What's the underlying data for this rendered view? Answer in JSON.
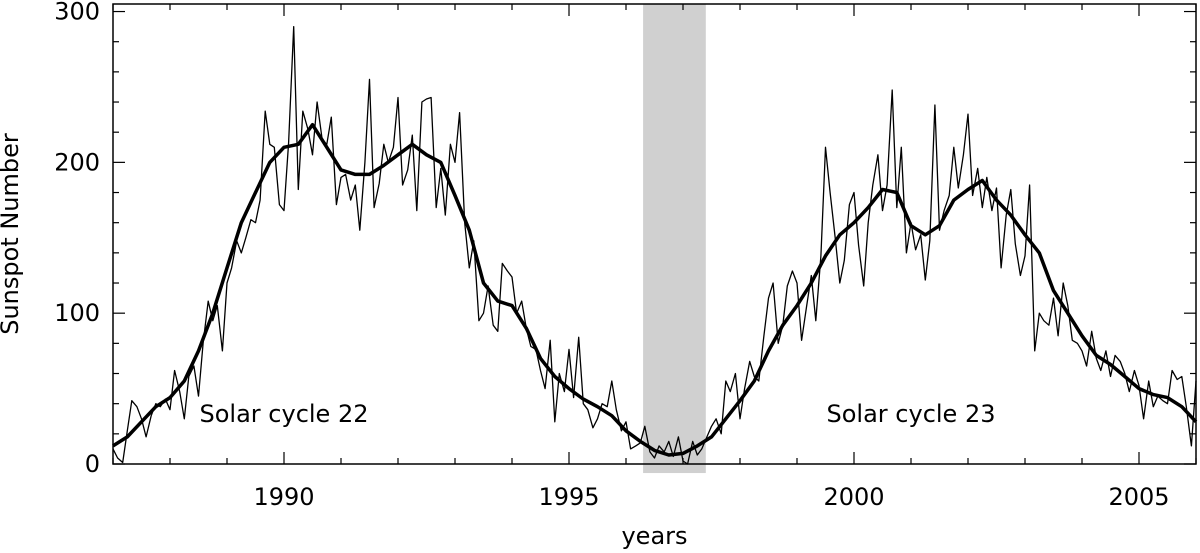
{
  "chart_data": {
    "type": "line",
    "xlabel": "years",
    "ylabel": "Sunspot Number",
    "xlim": [
      1987.0,
      2006.0
    ],
    "ylim": [
      0,
      305
    ],
    "x_ticks": [
      1990,
      1995,
      2000,
      2005
    ],
    "y_ticks": [
      0,
      100,
      200,
      300
    ],
    "grid": false,
    "shaded_region": {
      "x_start": 1996.3,
      "x_end": 1997.4,
      "color": "#d0d0d0"
    },
    "annotations": [
      {
        "text": "Solar cycle 22",
        "x": 1990.0,
        "y": 28
      },
      {
        "text": "Solar cycle 23",
        "x": 2001.0,
        "y": 28
      }
    ],
    "series": [
      {
        "style": "thin",
        "color": "#000000",
        "points": [
          [
            1987.0,
            10
          ],
          [
            1987.08,
            4
          ],
          [
            1987.17,
            1
          ],
          [
            1987.25,
            22
          ],
          [
            1987.33,
            42
          ],
          [
            1987.42,
            38
          ],
          [
            1987.5,
            30
          ],
          [
            1987.58,
            18
          ],
          [
            1987.67,
            32
          ],
          [
            1987.75,
            40
          ],
          [
            1987.83,
            38
          ],
          [
            1987.92,
            43
          ],
          [
            1988.0,
            36
          ],
          [
            1988.08,
            62
          ],
          [
            1988.17,
            48
          ],
          [
            1988.25,
            30
          ],
          [
            1988.33,
            58
          ],
          [
            1988.42,
            65
          ],
          [
            1988.5,
            45
          ],
          [
            1988.58,
            80
          ],
          [
            1988.67,
            108
          ],
          [
            1988.75,
            95
          ],
          [
            1988.83,
            105
          ],
          [
            1988.92,
            75
          ],
          [
            1989.0,
            120
          ],
          [
            1989.08,
            130
          ],
          [
            1989.17,
            148
          ],
          [
            1989.25,
            140
          ],
          [
            1989.33,
            150
          ],
          [
            1989.42,
            162
          ],
          [
            1989.5,
            160
          ],
          [
            1989.58,
            175
          ],
          [
            1989.67,
            234
          ],
          [
            1989.75,
            212
          ],
          [
            1989.83,
            210
          ],
          [
            1989.92,
            172
          ],
          [
            1990.0,
            168
          ],
          [
            1990.08,
            213
          ],
          [
            1990.17,
            290
          ],
          [
            1990.25,
            182
          ],
          [
            1990.33,
            234
          ],
          [
            1990.42,
            222
          ],
          [
            1990.5,
            205
          ],
          [
            1990.58,
            240
          ],
          [
            1990.67,
            215
          ],
          [
            1990.75,
            212
          ],
          [
            1990.83,
            230
          ],
          [
            1990.92,
            172
          ],
          [
            1991.0,
            190
          ],
          [
            1991.08,
            192
          ],
          [
            1991.17,
            175
          ],
          [
            1991.25,
            185
          ],
          [
            1991.33,
            155
          ],
          [
            1991.42,
            200
          ],
          [
            1991.5,
            255
          ],
          [
            1991.58,
            170
          ],
          [
            1991.67,
            186
          ],
          [
            1991.75,
            212
          ],
          [
            1991.83,
            200
          ],
          [
            1991.92,
            210
          ],
          [
            1992.0,
            243
          ],
          [
            1992.08,
            185
          ],
          [
            1992.17,
            195
          ],
          [
            1992.25,
            218
          ],
          [
            1992.33,
            168
          ],
          [
            1992.42,
            240
          ],
          [
            1992.5,
            242
          ],
          [
            1992.58,
            243
          ],
          [
            1992.67,
            170
          ],
          [
            1992.75,
            196
          ],
          [
            1992.83,
            165
          ],
          [
            1992.92,
            212
          ],
          [
            1993.0,
            200
          ],
          [
            1993.08,
            233
          ],
          [
            1993.17,
            160
          ],
          [
            1993.25,
            130
          ],
          [
            1993.33,
            148
          ],
          [
            1993.42,
            95
          ],
          [
            1993.5,
            100
          ],
          [
            1993.58,
            118
          ],
          [
            1993.67,
            92
          ],
          [
            1993.75,
            88
          ],
          [
            1993.83,
            133
          ],
          [
            1993.92,
            128
          ],
          [
            1994.0,
            124
          ],
          [
            1994.08,
            100
          ],
          [
            1994.17,
            108
          ],
          [
            1994.25,
            90
          ],
          [
            1994.33,
            78
          ],
          [
            1994.42,
            76
          ],
          [
            1994.5,
            62
          ],
          [
            1994.58,
            50
          ],
          [
            1994.67,
            82
          ],
          [
            1994.75,
            28
          ],
          [
            1994.83,
            60
          ],
          [
            1994.92,
            48
          ],
          [
            1995.0,
            76
          ],
          [
            1995.08,
            44
          ],
          [
            1995.17,
            84
          ],
          [
            1995.25,
            40
          ],
          [
            1995.33,
            36
          ],
          [
            1995.42,
            24
          ],
          [
            1995.5,
            30
          ],
          [
            1995.58,
            40
          ],
          [
            1995.67,
            38
          ],
          [
            1995.75,
            55
          ],
          [
            1995.83,
            36
          ],
          [
            1995.92,
            22
          ],
          [
            1996.0,
            28
          ],
          [
            1996.08,
            10
          ],
          [
            1996.17,
            12
          ],
          [
            1996.25,
            14
          ],
          [
            1996.33,
            25
          ],
          [
            1996.42,
            8
          ],
          [
            1996.5,
            4
          ],
          [
            1996.58,
            12
          ],
          [
            1996.67,
            8
          ],
          [
            1996.75,
            15
          ],
          [
            1996.83,
            5
          ],
          [
            1996.92,
            18
          ],
          [
            1997.0,
            2
          ],
          [
            1997.08,
            0
          ],
          [
            1997.17,
            15
          ],
          [
            1997.25,
            6
          ],
          [
            1997.33,
            10
          ],
          [
            1997.42,
            18
          ],
          [
            1997.5,
            25
          ],
          [
            1997.58,
            30
          ],
          [
            1997.67,
            20
          ],
          [
            1997.75,
            55
          ],
          [
            1997.83,
            48
          ],
          [
            1997.92,
            60
          ],
          [
            1998.0,
            30
          ],
          [
            1998.08,
            50
          ],
          [
            1998.17,
            68
          ],
          [
            1998.25,
            58
          ],
          [
            1998.33,
            55
          ],
          [
            1998.42,
            85
          ],
          [
            1998.5,
            110
          ],
          [
            1998.58,
            120
          ],
          [
            1998.67,
            80
          ],
          [
            1998.75,
            92
          ],
          [
            1998.83,
            118
          ],
          [
            1998.92,
            128
          ],
          [
            1999.0,
            120
          ],
          [
            1999.08,
            82
          ],
          [
            1999.17,
            105
          ],
          [
            1999.25,
            125
          ],
          [
            1999.33,
            95
          ],
          [
            1999.42,
            138
          ],
          [
            1999.5,
            210
          ],
          [
            1999.58,
            180
          ],
          [
            1999.67,
            150
          ],
          [
            1999.75,
            120
          ],
          [
            1999.83,
            135
          ],
          [
            1999.92,
            172
          ],
          [
            2000.0,
            180
          ],
          [
            2000.08,
            145
          ],
          [
            2000.17,
            118
          ],
          [
            2000.25,
            160
          ],
          [
            2000.33,
            185
          ],
          [
            2000.42,
            205
          ],
          [
            2000.5,
            168
          ],
          [
            2000.58,
            185
          ],
          [
            2000.67,
            248
          ],
          [
            2000.75,
            170
          ],
          [
            2000.83,
            210
          ],
          [
            2000.92,
            140
          ],
          [
            2001.0,
            160
          ],
          [
            2001.08,
            142
          ],
          [
            2001.17,
            152
          ],
          [
            2001.25,
            122
          ],
          [
            2001.33,
            148
          ],
          [
            2001.42,
            238
          ],
          [
            2001.5,
            155
          ],
          [
            2001.58,
            168
          ],
          [
            2001.67,
            178
          ],
          [
            2001.75,
            210
          ],
          [
            2001.83,
            183
          ],
          [
            2001.92,
            205
          ],
          [
            2002.0,
            232
          ],
          [
            2002.08,
            178
          ],
          [
            2002.17,
            196
          ],
          [
            2002.25,
            170
          ],
          [
            2002.33,
            190
          ],
          [
            2002.42,
            168
          ],
          [
            2002.5,
            183
          ],
          [
            2002.58,
            130
          ],
          [
            2002.67,
            165
          ],
          [
            2002.75,
            182
          ],
          [
            2002.83,
            146
          ],
          [
            2002.92,
            125
          ],
          [
            2003.0,
            138
          ],
          [
            2003.08,
            185
          ],
          [
            2003.17,
            75
          ],
          [
            2003.25,
            100
          ],
          [
            2003.33,
            95
          ],
          [
            2003.42,
            92
          ],
          [
            2003.5,
            110
          ],
          [
            2003.58,
            85
          ],
          [
            2003.67,
            120
          ],
          [
            2003.75,
            105
          ],
          [
            2003.83,
            82
          ],
          [
            2003.92,
            80
          ],
          [
            2004.0,
            75
          ],
          [
            2004.08,
            65
          ],
          [
            2004.17,
            88
          ],
          [
            2004.25,
            70
          ],
          [
            2004.33,
            62
          ],
          [
            2004.42,
            75
          ],
          [
            2004.5,
            58
          ],
          [
            2004.58,
            72
          ],
          [
            2004.67,
            68
          ],
          [
            2004.75,
            60
          ],
          [
            2004.83,
            48
          ],
          [
            2004.92,
            62
          ],
          [
            2005.0,
            52
          ],
          [
            2005.08,
            30
          ],
          [
            2005.17,
            55
          ],
          [
            2005.25,
            38
          ],
          [
            2005.33,
            45
          ],
          [
            2005.42,
            42
          ],
          [
            2005.5,
            40
          ],
          [
            2005.58,
            62
          ],
          [
            2005.67,
            56
          ],
          [
            2005.75,
            58
          ],
          [
            2005.83,
            38
          ],
          [
            2005.92,
            12
          ],
          [
            2006.0,
            55
          ]
        ]
      },
      {
        "style": "thick",
        "color": "#000000",
        "points": [
          [
            1987.0,
            12
          ],
          [
            1987.25,
            18
          ],
          [
            1987.5,
            28
          ],
          [
            1987.75,
            38
          ],
          [
            1988.0,
            44
          ],
          [
            1988.25,
            55
          ],
          [
            1988.5,
            75
          ],
          [
            1988.75,
            100
          ],
          [
            1989.0,
            130
          ],
          [
            1989.25,
            160
          ],
          [
            1989.5,
            180
          ],
          [
            1989.75,
            200
          ],
          [
            1990.0,
            210
          ],
          [
            1990.25,
            212
          ],
          [
            1990.5,
            225
          ],
          [
            1990.75,
            210
          ],
          [
            1991.0,
            195
          ],
          [
            1991.25,
            192
          ],
          [
            1991.5,
            192
          ],
          [
            1991.75,
            198
          ],
          [
            1992.0,
            205
          ],
          [
            1992.25,
            212
          ],
          [
            1992.5,
            205
          ],
          [
            1992.75,
            200
          ],
          [
            1993.0,
            178
          ],
          [
            1993.25,
            155
          ],
          [
            1993.5,
            120
          ],
          [
            1993.75,
            108
          ],
          [
            1994.0,
            105
          ],
          [
            1994.25,
            90
          ],
          [
            1994.5,
            70
          ],
          [
            1994.75,
            58
          ],
          [
            1995.0,
            50
          ],
          [
            1995.25,
            43
          ],
          [
            1995.5,
            38
          ],
          [
            1995.75,
            32
          ],
          [
            1996.0,
            22
          ],
          [
            1996.25,
            15
          ],
          [
            1996.5,
            9
          ],
          [
            1996.75,
            6
          ],
          [
            1997.0,
            7
          ],
          [
            1997.25,
            12
          ],
          [
            1997.5,
            18
          ],
          [
            1997.75,
            30
          ],
          [
            1998.0,
            42
          ],
          [
            1998.25,
            55
          ],
          [
            1998.5,
            75
          ],
          [
            1998.75,
            92
          ],
          [
            1999.0,
            105
          ],
          [
            1999.25,
            120
          ],
          [
            1999.5,
            138
          ],
          [
            1999.75,
            152
          ],
          [
            2000.0,
            160
          ],
          [
            2000.25,
            170
          ],
          [
            2000.5,
            182
          ],
          [
            2000.75,
            180
          ],
          [
            2001.0,
            158
          ],
          [
            2001.25,
            152
          ],
          [
            2001.5,
            158
          ],
          [
            2001.75,
            175
          ],
          [
            2002.0,
            182
          ],
          [
            2002.25,
            188
          ],
          [
            2002.5,
            175
          ],
          [
            2002.75,
            165
          ],
          [
            2003.0,
            152
          ],
          [
            2003.25,
            140
          ],
          [
            2003.5,
            115
          ],
          [
            2003.75,
            100
          ],
          [
            2004.0,
            85
          ],
          [
            2004.25,
            72
          ],
          [
            2004.5,
            66
          ],
          [
            2004.75,
            58
          ],
          [
            2005.0,
            50
          ],
          [
            2005.25,
            46
          ],
          [
            2005.5,
            44
          ],
          [
            2005.75,
            38
          ],
          [
            2006.0,
            28
          ]
        ]
      }
    ]
  }
}
